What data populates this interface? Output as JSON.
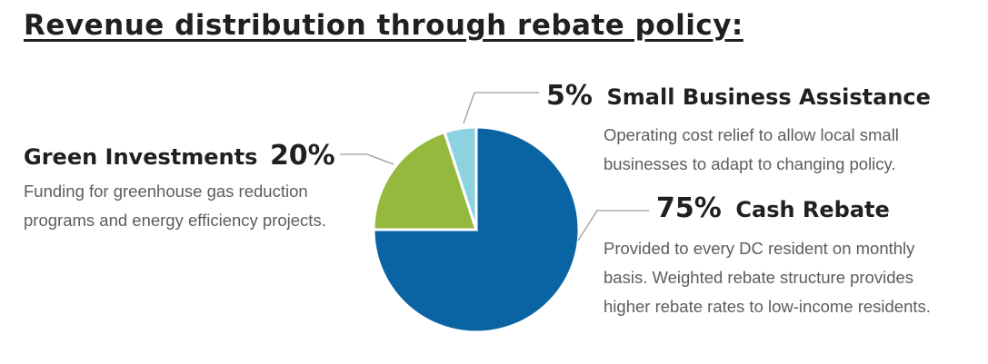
{
  "title": "Revenue distribution through rebate policy:",
  "chart_data": {
    "type": "pie",
    "title": "Revenue distribution through rebate policy:",
    "slices": [
      {
        "label": "Cash Rebate",
        "value": 75,
        "display": "75%",
        "color": "#0a64a4",
        "description": [
          "Provided to every DC resident on monthly",
          "basis. Weighted rebate structure provides",
          "higher rebate rates to low-income residents."
        ]
      },
      {
        "label": "Green Investments",
        "value": 20,
        "display": "20%",
        "color": "#95b93d",
        "description": [
          "Funding for greenhouse gas reduction",
          "programs and energy efficiency projects."
        ]
      },
      {
        "label": "Small Business Assistance",
        "value": 5,
        "display": "5%",
        "color": "#8cd2e0",
        "description": [
          "Operating cost relief to allow local small",
          "businesses to adapt to changing policy."
        ]
      }
    ]
  }
}
